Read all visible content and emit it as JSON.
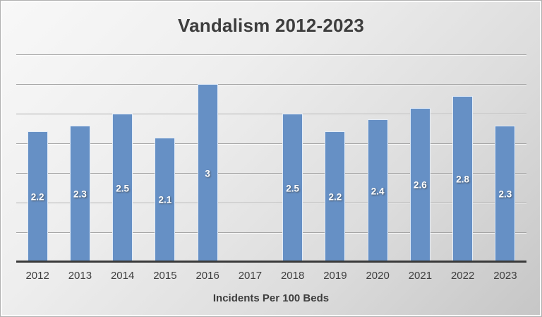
{
  "chart_data": {
    "type": "bar",
    "title": "Vandalism 2012-2023",
    "xlabel": "Incidents Per 100 Beds",
    "ylabel": "",
    "categories": [
      "2012",
      "2013",
      "2014",
      "2015",
      "2016",
      "2017",
      "2018",
      "2019",
      "2020",
      "2021",
      "2022",
      "2023"
    ],
    "values": [
      2.2,
      2.3,
      2.5,
      2.1,
      3,
      null,
      2.5,
      2.2,
      2.4,
      2.6,
      2.8,
      2.3
    ],
    "data_labels": [
      "2.2",
      "2.3",
      "2.5",
      "2.1",
      "3",
      null,
      "2.5",
      "2.2",
      "2.4",
      "2.6",
      "2.8",
      "2.3"
    ],
    "ylim": [
      0,
      3.5
    ],
    "gridline_interval": 0.5,
    "grid": true,
    "legend": false,
    "y_axis_labels_shown": false,
    "data_label_position": "inside-center",
    "colors": {
      "bar": "#6690C5",
      "bar_border": "#E2ECF8",
      "data_label": "#FFFFFF",
      "title_text": "#3D3D3D",
      "tick_text": "#3F3F3F",
      "axis_line": "#3A3A3A",
      "gridline": "#A3A3A3",
      "background_light": "#F8F8F8",
      "background_dark": "#C6C6C6"
    }
  }
}
